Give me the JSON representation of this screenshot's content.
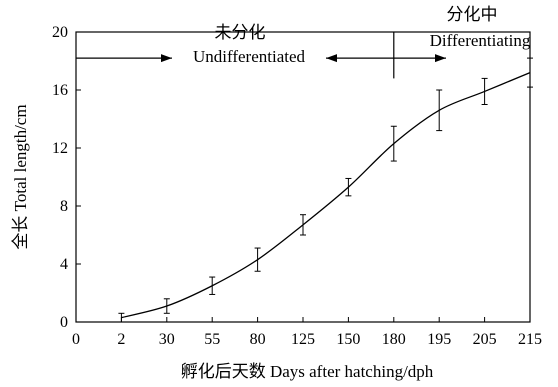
{
  "chart_data": {
    "type": "line",
    "xlabel": "孵化后天数 Days after hatching/dph",
    "ylabel": "全长 Total length/cm",
    "x_ticks": [
      "0",
      "2",
      "30",
      "55",
      "80",
      "125",
      "150",
      "180",
      "195",
      "205",
      "215"
    ],
    "y_ticks": [
      "0",
      "4",
      "8",
      "12",
      "16",
      "20"
    ],
    "ylim": [
      0,
      20
    ],
    "grid": false,
    "series": [
      {
        "x": [
          "2",
          "30",
          "55",
          "80",
          "125",
          "150",
          "180",
          "195",
          "205",
          "215"
        ],
        "values": [
          0.3,
          1.1,
          2.5,
          4.3,
          6.7,
          9.3,
          12.3,
          14.6,
          15.9,
          17.2
        ],
        "error": [
          0.3,
          0.5,
          0.6,
          0.8,
          0.7,
          0.6,
          1.2,
          1.4,
          0.9,
          1.0
        ]
      }
    ],
    "annotations": [
      {
        "zh": "未分化",
        "en": "Undifferentiated"
      },
      {
        "zh": "分化中",
        "en": "Differentiating"
      }
    ]
  }
}
